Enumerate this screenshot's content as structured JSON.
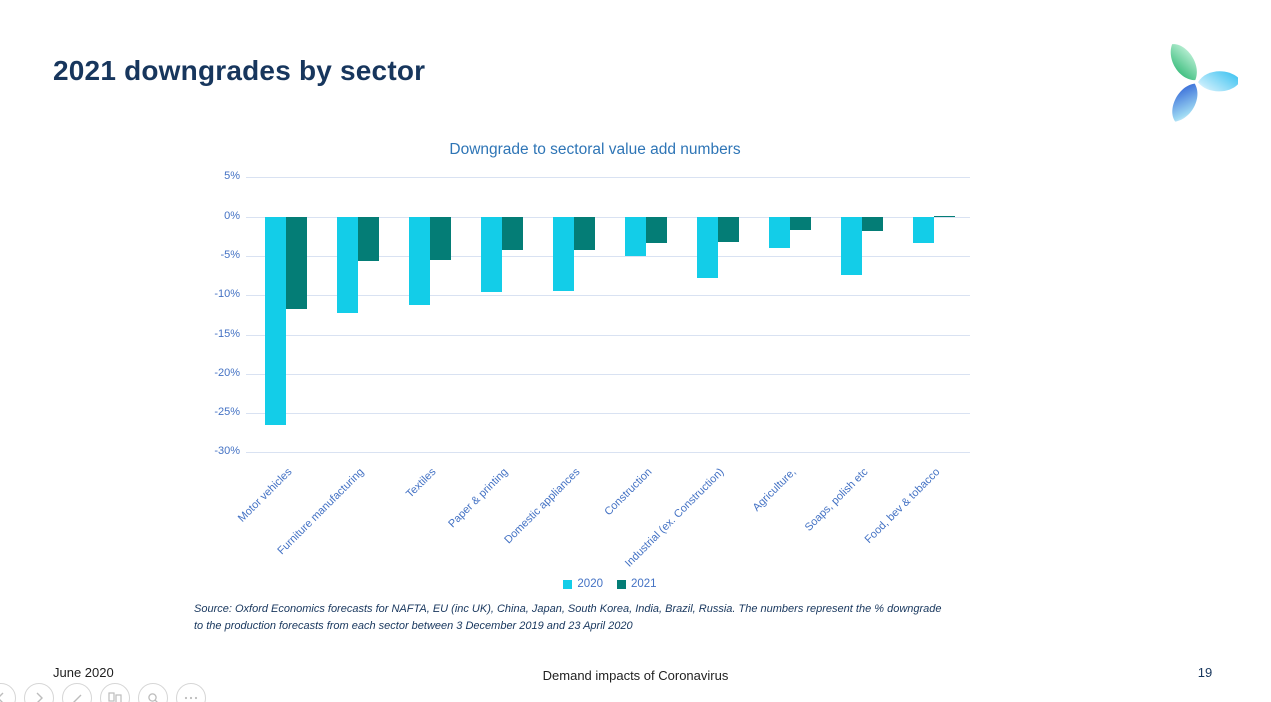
{
  "slide": {
    "title": "2021 downgrades by sector"
  },
  "chart_data": {
    "type": "bar",
    "title": "Downgrade to sectoral value add numbers",
    "categories": [
      "Motor vehicles",
      "Furniture manufacturing",
      "Textiles",
      "Paper & printing",
      "Domestic appliances",
      "Construction",
      "Industrial (ex. Construction)",
      "Agriculture,",
      "Soaps, polish etc",
      "Food, bev & tobacco"
    ],
    "series": [
      {
        "name": "2020",
        "color": "#13CDE8",
        "values": [
          -26.5,
          -12.3,
          -11.3,
          -9.6,
          -9.5,
          -5.0,
          -7.8,
          -4.0,
          -7.4,
          -3.3
        ]
      },
      {
        "name": "2021",
        "color": "#047D76",
        "values": [
          -11.8,
          -5.6,
          -5.5,
          -4.3,
          -4.3,
          -3.3,
          -3.2,
          -1.7,
          -1.8,
          0.1
        ]
      }
    ],
    "ylabel": "",
    "xlabel": "",
    "ylim": [
      -30,
      5
    ],
    "ytick_step": 5,
    "ytick_suffix": "%",
    "grid": true,
    "legend_position": "bottom",
    "gridline_color": "#D9E2F2",
    "axis_label_color": "#4472C4"
  },
  "source_note": "Source: Oxford Economics forecasts for NAFTA, EU (inc UK), China, Japan, South Korea, India, Brazil, Russia. The numbers represent the % downgrade to the production forecasts from each sector between 3 December 2019 and 23 April 2020",
  "footer": {
    "date": "June 2020",
    "center": "Demand impacts of Coronavirus",
    "page": "19"
  },
  "toolbar": {
    "buttons": [
      "previous-slide",
      "next-slide",
      "pen",
      "see-all-slides",
      "zoom-slide",
      "more-options"
    ]
  },
  "colors": {
    "title": "#17365D",
    "chart_title": "#2E75B6",
    "series_2020": "#13CDE8",
    "series_2021": "#047D76"
  }
}
